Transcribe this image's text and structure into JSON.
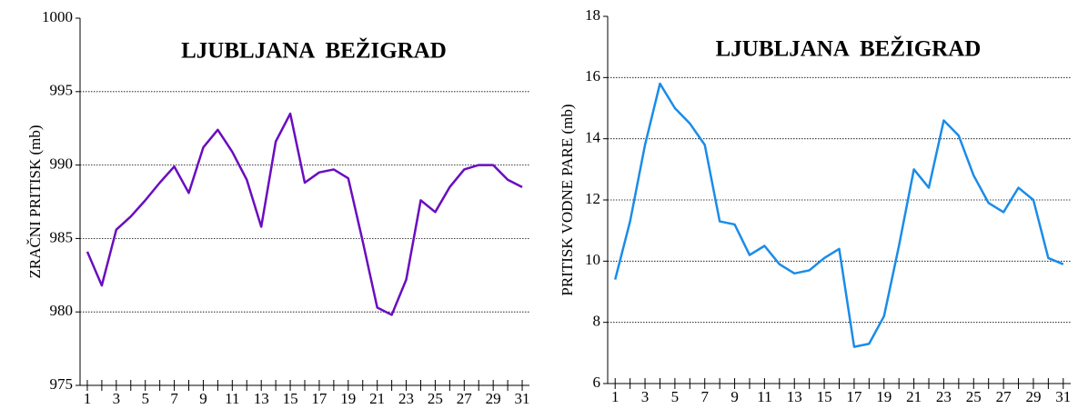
{
  "chart_data": [
    {
      "type": "line",
      "title": "LJUBLJANA  BEŽIGRAD",
      "y_label": "ZRAČNI PRITISK (mb)",
      "x": [
        1,
        2,
        3,
        4,
        5,
        6,
        7,
        8,
        9,
        10,
        11,
        12,
        13,
        14,
        15,
        16,
        17,
        18,
        19,
        20,
        21,
        22,
        23,
        24,
        25,
        26,
        27,
        28,
        29,
        30,
        31
      ],
      "series": [
        {
          "name": "ZRAČNI PRITISK",
          "color": "#6a0dbf",
          "values": [
            984.1,
            981.8,
            985.6,
            986.5,
            987.6,
            988.8,
            989.9,
            988.1,
            991.2,
            992.4,
            990.9,
            989.0,
            985.8,
            991.6,
            993.5,
            988.8,
            989.5,
            989.7,
            989.1,
            984.8,
            980.3,
            979.8,
            982.2,
            987.6,
            986.8,
            988.5,
            989.7,
            990.0,
            990.0,
            989.0,
            988.5
          ]
        }
      ],
      "xlim": [
        0.5,
        31.5
      ],
      "xticks": [
        1,
        3,
        5,
        7,
        9,
        11,
        13,
        15,
        17,
        19,
        21,
        23,
        25,
        27,
        29,
        31
      ],
      "ylim": [
        975,
        1000
      ],
      "yticks": [
        975,
        980,
        985,
        990,
        995,
        1000
      ],
      "grid": true
    },
    {
      "type": "line",
      "title": "LJUBLJANA  BEŽIGRAD",
      "y_label": "PRITISK VODNE PARE (mb)",
      "x": [
        1,
        2,
        3,
        4,
        5,
        6,
        7,
        8,
        9,
        10,
        11,
        12,
        13,
        14,
        15,
        16,
        17,
        18,
        19,
        20,
        21,
        22,
        23,
        24,
        25,
        26,
        27,
        28,
        29,
        30,
        31
      ],
      "series": [
        {
          "name": "PRITISK VODNE PARE",
          "color": "#1a8ce8",
          "values": [
            9.4,
            11.3,
            13.8,
            15.8,
            15.0,
            14.5,
            13.8,
            11.3,
            11.2,
            10.2,
            10.5,
            9.9,
            9.6,
            9.7,
            10.1,
            10.4,
            7.2,
            7.3,
            8.2,
            10.5,
            13.0,
            12.4,
            14.6,
            14.1,
            12.8,
            11.9,
            11.6,
            12.4,
            12.0,
            10.1,
            9.9
          ]
        }
      ],
      "xlim": [
        0.5,
        31.5
      ],
      "xticks": [
        1,
        3,
        5,
        7,
        9,
        11,
        13,
        15,
        17,
        19,
        21,
        23,
        25,
        27,
        29,
        31
      ],
      "ylim": [
        6,
        18
      ],
      "yticks": [
        6,
        8,
        10,
        12,
        14,
        16,
        18
      ],
      "grid": true
    }
  ]
}
